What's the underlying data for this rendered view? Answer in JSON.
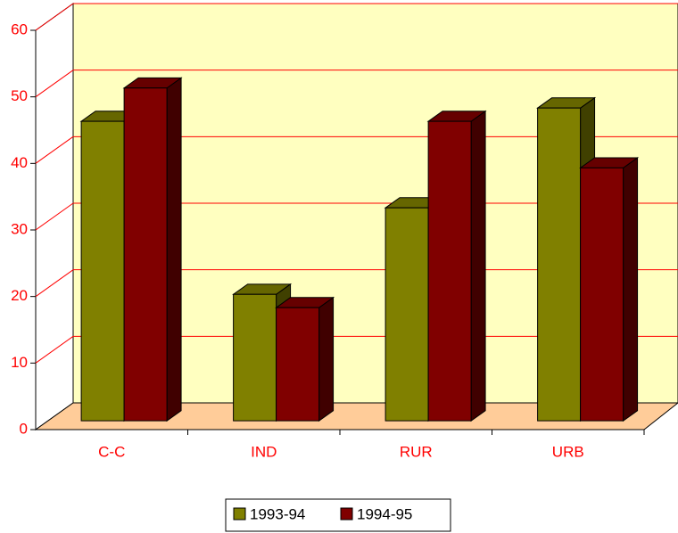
{
  "chart_data": {
    "type": "bar3d",
    "categories": [
      "C-C",
      "IND",
      "RUR",
      "URB"
    ],
    "series": [
      {
        "name": "1993-94",
        "color": "#808000",
        "values": [
          45,
          19,
          32,
          47
        ]
      },
      {
        "name": "1994-95",
        "color": "#800000",
        "values": [
          50,
          17,
          45,
          38
        ]
      }
    ],
    "ylim": [
      0,
      60
    ],
    "yticks": [
      0,
      10,
      20,
      30,
      40,
      50,
      60
    ],
    "grid": true,
    "legend": "bottom"
  }
}
